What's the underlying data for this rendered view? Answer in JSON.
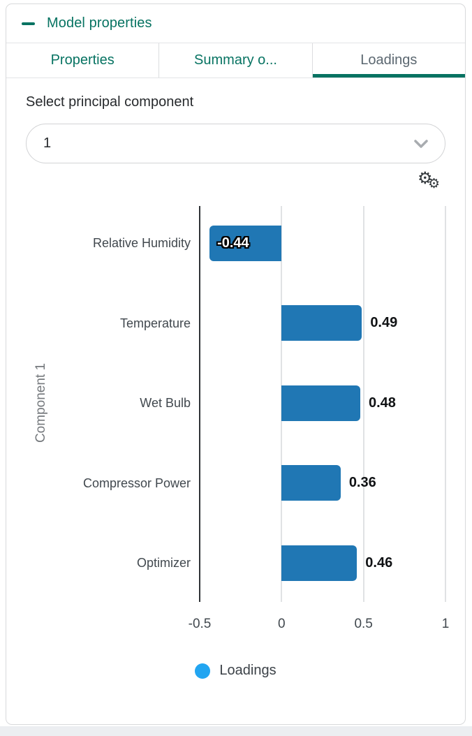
{
  "panel": {
    "title": "Model properties"
  },
  "tabs": [
    {
      "label": "Properties",
      "active": false
    },
    {
      "label": "Summary o...",
      "active": false
    },
    {
      "label": "Loadings",
      "active": true
    }
  ],
  "component_selector": {
    "label": "Select principal component",
    "value": "1",
    "chevron_icon": "chevron-down-icon"
  },
  "toolbar": {
    "settings_icon": "gears-icon",
    "gear_glyph": "⚙"
  },
  "chart_data": {
    "type": "bar",
    "orientation": "horizontal",
    "title": "",
    "categories": [
      "Relative Humidity",
      "Temperature",
      "Wet Bulb",
      "Compressor Power",
      "Optimizer"
    ],
    "values": [
      -0.44,
      0.49,
      0.48,
      0.36,
      0.46
    ],
    "value_labels": [
      "-0.44",
      "0.49",
      "0.48",
      "0.36",
      "0.46"
    ],
    "ylabel": "Component 1",
    "xlabel": "",
    "xlim": [
      -0.5,
      1
    ],
    "xticks": [
      -0.5,
      0,
      0.5,
      1
    ],
    "xtick_labels": [
      "-0.5",
      "0",
      "0.5",
      "1"
    ],
    "grid": true,
    "legend_position": "bottom",
    "legend": [
      {
        "label": "Loadings",
        "color": "#22a5f1"
      }
    ],
    "bar_color": "#2077b4"
  },
  "colors": {
    "accent_teal": "#077362",
    "bar_blue": "#2077b4",
    "legend_blue": "#22a5f1"
  }
}
